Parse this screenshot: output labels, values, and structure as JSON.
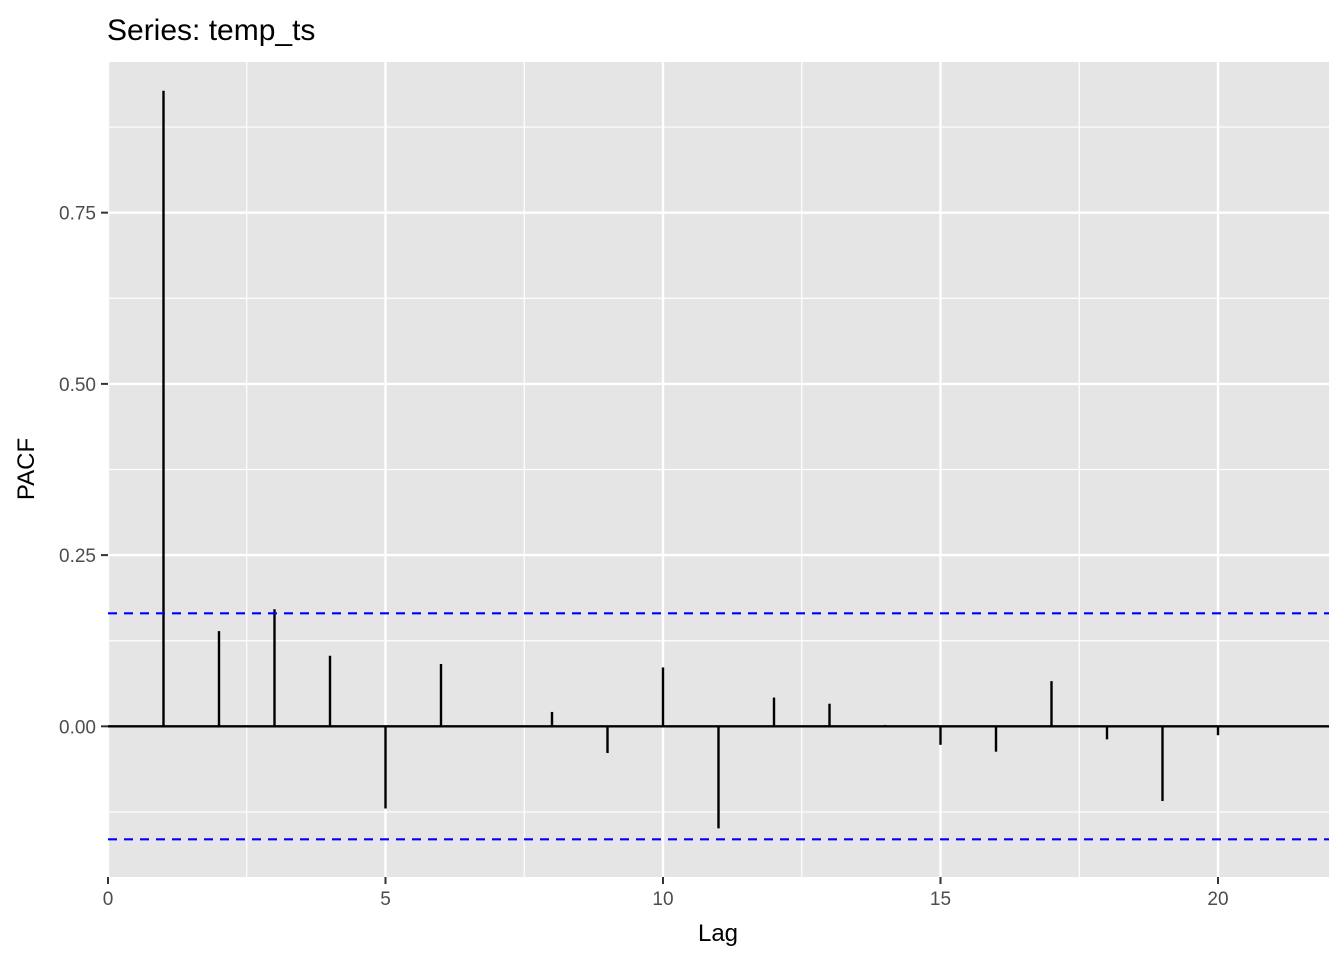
{
  "chart_data": {
    "type": "bar",
    "title": "Series: temp_ts",
    "xlabel": "Lag",
    "ylabel": "PACF",
    "xlim": [
      0,
      22
    ],
    "ylim": [
      -0.22,
      0.97
    ],
    "x_ticks": [
      {
        "value": 0,
        "label": "0"
      },
      {
        "value": 5,
        "label": "5"
      },
      {
        "value": 10,
        "label": "10"
      },
      {
        "value": 15,
        "label": "15"
      },
      {
        "value": 20,
        "label": "20"
      }
    ],
    "y_ticks": [
      {
        "value": 0.0,
        "label": "0.00"
      },
      {
        "value": 0.25,
        "label": "0.25"
      },
      {
        "value": 0.5,
        "label": "0.50"
      },
      {
        "value": 0.75,
        "label": "0.75"
      }
    ],
    "lags": [
      1,
      2,
      3,
      4,
      5,
      6,
      7,
      8,
      9,
      10,
      11,
      12,
      13,
      14,
      15,
      16,
      17,
      18,
      19,
      20
    ],
    "values": [
      0.928,
      0.139,
      0.171,
      0.103,
      -0.12,
      0.091,
      -0.001,
      0.021,
      -0.039,
      0.086,
      -0.149,
      0.042,
      0.033,
      0.002,
      -0.027,
      -0.037,
      0.066,
      -0.019,
      -0.109,
      -0.013
    ],
    "confidence_bounds": [
      0.165,
      -0.165
    ],
    "grid": true,
    "colors": {
      "panel_background": "#e5e5e5",
      "grid": "#ffffff",
      "bars": "#000000",
      "confidence_lines": "#0000ff",
      "tick_labels": "#4d4d4d"
    }
  }
}
